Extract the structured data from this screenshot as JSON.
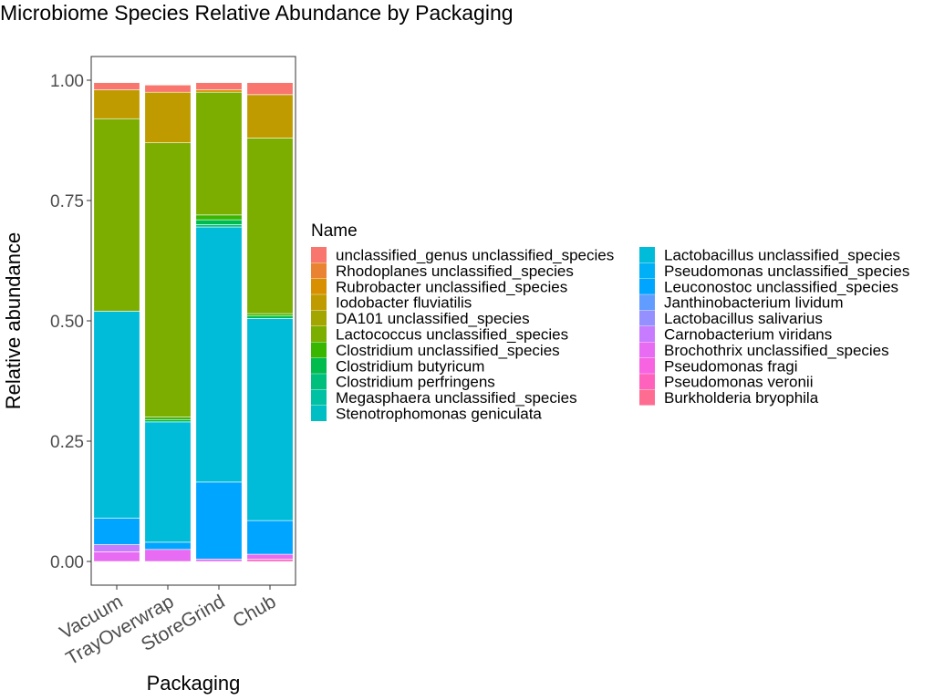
{
  "chart_data": {
    "type": "bar",
    "stacked": true,
    "title": "Microbiome Species Relative Abundance by Packaging",
    "xlabel": "Packaging",
    "ylabel": "Relative abundance",
    "ylim": [
      0,
      1.05
    ],
    "yticks": [
      0,
      0.25,
      0.5,
      0.75,
      1.0
    ],
    "ytick_labels": [
      "0.00",
      "0.25",
      "0.50",
      "0.75",
      "1.00"
    ],
    "grid": false,
    "legend_title": "Name",
    "legend_position": "right",
    "categories": [
      "Vacuum",
      "TrayOverwrap",
      "StoreGrind",
      "Chub"
    ],
    "series": [
      {
        "name": "unclassified_genus unclassified_species",
        "color": "#F8766D",
        "values": [
          0.015,
          0.015,
          0.015,
          0.025
        ]
      },
      {
        "name": "Rhodoplanes unclassified_species",
        "color": "#EA8331",
        "values": [
          0.0,
          0.0,
          0.0,
          0.0
        ]
      },
      {
        "name": "Rubrobacter unclassified_species",
        "color": "#D89000",
        "values": [
          0.0,
          0.0,
          0.005,
          0.0
        ]
      },
      {
        "name": "Iodobacter fluviatilis",
        "color": "#C09B00",
        "values": [
          0.06,
          0.105,
          0.0,
          0.09
        ]
      },
      {
        "name": "DA101 unclassified_species",
        "color": "#A3A500",
        "values": [
          0.0,
          0.0,
          0.0,
          0.0
        ]
      },
      {
        "name": "Lactococcus unclassified_species",
        "color": "#7CAE00",
        "values": [
          0.4,
          0.57,
          0.255,
          0.365
        ]
      },
      {
        "name": "Clostridium unclassified_species",
        "color": "#39B600",
        "values": [
          0.0,
          0.005,
          0.01,
          0.005
        ]
      },
      {
        "name": "Clostridium butyricum",
        "color": "#00BB4E",
        "values": [
          0.0,
          0.005,
          0.01,
          0.005
        ]
      },
      {
        "name": "Clostridium perfringens",
        "color": "#00BF7D",
        "values": [
          0.0,
          0.0,
          0.005,
          0.0
        ]
      },
      {
        "name": "Megasphaera unclassified_species",
        "color": "#00C1A3",
        "values": [
          0.0,
          0.0,
          0.0,
          0.0
        ]
      },
      {
        "name": "Stenotrophomonas geniculata",
        "color": "#00BFC4",
        "values": [
          0.0,
          0.0,
          0.0,
          0.0
        ]
      },
      {
        "name": "Lactobacillus unclassified_species",
        "color": "#00BCD8",
        "values": [
          0.43,
          0.25,
          0.53,
          0.42
        ]
      },
      {
        "name": "Pseudomonas unclassified_species",
        "color": "#00B0F6",
        "values": [
          0.0,
          0.0,
          0.0,
          0.0
        ]
      },
      {
        "name": "Leuconostoc unclassified_species",
        "color": "#00A5FF",
        "values": [
          0.055,
          0.015,
          0.16,
          0.07
        ]
      },
      {
        "name": "Janthinobacterium lividum",
        "color": "#619CFF",
        "values": [
          0.0,
          0.0,
          0.0,
          0.0
        ]
      },
      {
        "name": "Lactobacillus salivarius",
        "color": "#9590FF",
        "values": [
          0.0,
          0.0,
          0.0,
          0.0
        ]
      },
      {
        "name": "Carnobacterium viridans",
        "color": "#C77CFF",
        "values": [
          0.015,
          0.0,
          0.0,
          0.0
        ]
      },
      {
        "name": "Brochothrix unclassified_species",
        "color": "#E76BF3",
        "values": [
          0.02,
          0.025,
          0.005,
          0.01
        ]
      },
      {
        "name": "Pseudomonas fragi",
        "color": "#F763E0",
        "values": [
          0.0,
          0.0,
          0.0,
          0.0
        ]
      },
      {
        "name": "Pseudomonas veronii",
        "color": "#FF62BC",
        "values": [
          0.0,
          0.0,
          0.0,
          0.005
        ]
      },
      {
        "name": "Burkholderia bryophila",
        "color": "#FF6C91",
        "values": [
          0.0,
          0.0,
          0.0,
          0.0
        ]
      }
    ]
  }
}
